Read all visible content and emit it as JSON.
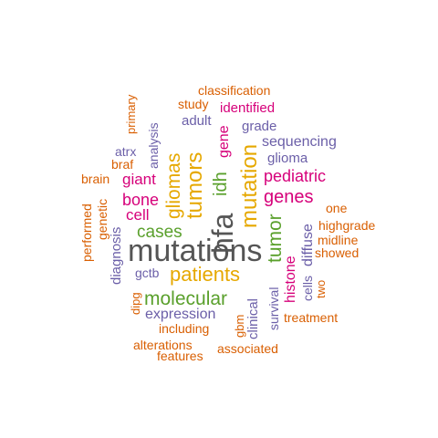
{
  "palette": {
    "dark_grey": "#555555",
    "gold": "#e6a800",
    "green": "#5aa02c",
    "magenta": "#d6007a",
    "purple": "#6b5fa8",
    "orange": "#d95f02"
  },
  "words": [
    {
      "text": "mutations",
      "color": "#555555"
    },
    {
      "text": "hfa",
      "color": "#555555"
    },
    {
      "text": "patients",
      "color": "#e6a800"
    },
    {
      "text": "mutation",
      "color": "#e6a800"
    },
    {
      "text": "tumors",
      "color": "#e6a800"
    },
    {
      "text": "gliomas",
      "color": "#e6a800"
    },
    {
      "text": "molecular",
      "color": "#5aa02c"
    },
    {
      "text": "idh",
      "color": "#5aa02c"
    },
    {
      "text": "tumor",
      "color": "#5aa02c"
    },
    {
      "text": "cases",
      "color": "#5aa02c"
    },
    {
      "text": "genes",
      "color": "#d6007a"
    },
    {
      "text": "pediatric",
      "color": "#d6007a"
    },
    {
      "text": "gene",
      "color": "#d6007a"
    },
    {
      "text": "bone",
      "color": "#d6007a"
    },
    {
      "text": "giant",
      "color": "#d6007a"
    },
    {
      "text": "cell",
      "color": "#d6007a"
    },
    {
      "text": "histone",
      "color": "#d6007a"
    },
    {
      "text": "identified",
      "color": "#d6007a"
    },
    {
      "text": "expression",
      "color": "#6b5fa8"
    },
    {
      "text": "sequencing",
      "color": "#6b5fa8"
    },
    {
      "text": "grade",
      "color": "#6b5fa8"
    },
    {
      "text": "adult",
      "color": "#6b5fa8"
    },
    {
      "text": "glioma",
      "color": "#6b5fa8"
    },
    {
      "text": "analysis",
      "color": "#6b5fa8"
    },
    {
      "text": "atrx",
      "color": "#6b5fa8"
    },
    {
      "text": "diagnosis",
      "color": "#6b5fa8"
    },
    {
      "text": "gctb",
      "color": "#6b5fa8"
    },
    {
      "text": "diffuse",
      "color": "#6b5fa8"
    },
    {
      "text": "cells",
      "color": "#6b5fa8"
    },
    {
      "text": "clinical",
      "color": "#6b5fa8"
    },
    {
      "text": "survival",
      "color": "#6b5fa8"
    },
    {
      "text": "classification",
      "color": "#d95f02"
    },
    {
      "text": "study",
      "color": "#d95f02"
    },
    {
      "text": "primary",
      "color": "#d95f02"
    },
    {
      "text": "braf",
      "color": "#d95f02"
    },
    {
      "text": "brain",
      "color": "#d95f02"
    },
    {
      "text": "genetic",
      "color": "#d95f02"
    },
    {
      "text": "performed",
      "color": "#d95f02"
    },
    {
      "text": "one",
      "color": "#d95f02"
    },
    {
      "text": "highgrade",
      "color": "#d95f02"
    },
    {
      "text": "midline",
      "color": "#d95f02"
    },
    {
      "text": "showed",
      "color": "#d95f02"
    },
    {
      "text": "two",
      "color": "#d95f02"
    },
    {
      "text": "treatment",
      "color": "#d95f02"
    },
    {
      "text": "dipg",
      "color": "#d95f02"
    },
    {
      "text": "gbm",
      "color": "#d95f02"
    },
    {
      "text": "including",
      "color": "#d95f02"
    },
    {
      "text": "alterations",
      "color": "#d95f02"
    },
    {
      "text": "associated",
      "color": "#d95f02"
    },
    {
      "text": "features",
      "color": "#d95f02"
    }
  ]
}
